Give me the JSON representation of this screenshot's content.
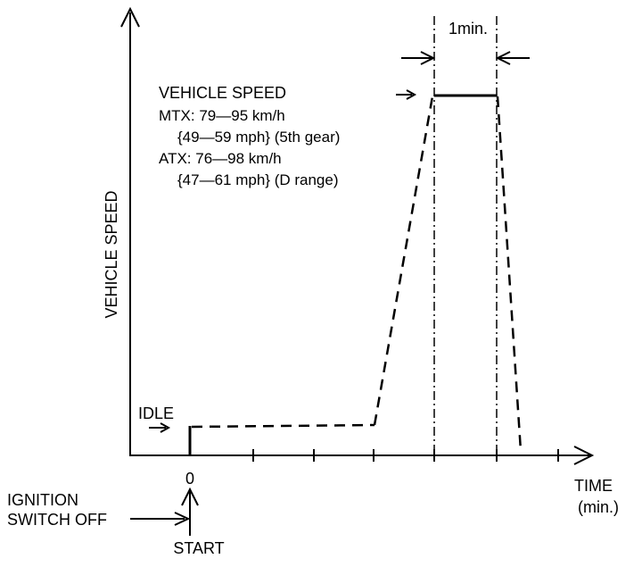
{
  "diagram": {
    "y_axis_label": "VEHICLE SPEED",
    "x_axis_label_line1": "TIME",
    "x_axis_label_line2": "(min.)",
    "zero_label": "0",
    "start_label": "START",
    "ignition_label_line1": "IGNITION",
    "ignition_label_line2": "SWITCH OFF",
    "idle_label": "IDLE",
    "interval_label": "1min.",
    "speed_block": {
      "title": "VEHICLE SPEED",
      "line1": "MTX: 79—95 km/h",
      "line2": "{49—59 mph} (5th gear)",
      "line3": "ATX: 76—98 km/h",
      "line4": "{47—61 mph} (D range)"
    }
  }
}
